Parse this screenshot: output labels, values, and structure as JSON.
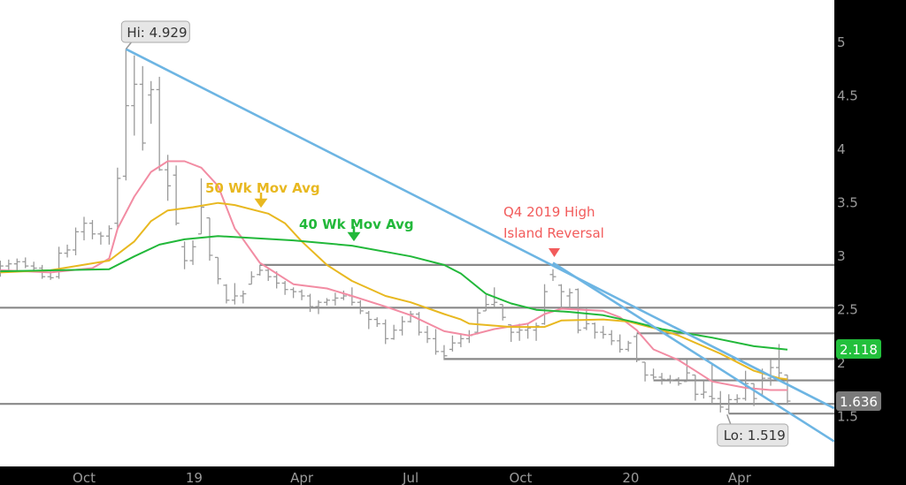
{
  "chart_data": {
    "type": "ohlc",
    "interval": "weekly",
    "title": "",
    "xlabel": "",
    "ylabel": "",
    "xlim": [
      "2018-07-22",
      "2020-06-19"
    ],
    "ylim": [
      1.03,
      5.39
    ],
    "grid": false,
    "x_ticks": [
      {
        "label": "Oct",
        "date": "2018-10-01"
      },
      {
        "label": "19",
        "date": "2019-01-01"
      },
      {
        "label": "Apr",
        "date": "2019-04-01"
      },
      {
        "label": "Jul",
        "date": "2019-07-01"
      },
      {
        "label": "Oct",
        "date": "2019-10-01"
      },
      {
        "label": "20",
        "date": "2020-01-01"
      },
      {
        "label": "Apr",
        "date": "2020-04-01"
      }
    ],
    "y_ticks": [
      {
        "label": "5",
        "value": 5
      },
      {
        "label": "4.5",
        "value": 4.5
      },
      {
        "label": "4",
        "value": 4
      },
      {
        "label": "3.5",
        "value": 3.5
      },
      {
        "label": "3",
        "value": 3
      },
      {
        "label": "2.5",
        "value": 2.5
      },
      {
        "label": "2",
        "value": 2
      },
      {
        "label": "1.5",
        "value": 1.5
      }
    ],
    "bars_columns": [
      "date",
      "open",
      "high",
      "low",
      "close"
    ],
    "bars": [
      [
        "2018-07-23",
        2.86,
        2.95,
        2.8,
        2.9
      ],
      [
        "2018-07-30",
        2.9,
        2.96,
        2.84,
        2.92
      ],
      [
        "2018-08-06",
        2.92,
        2.97,
        2.86,
        2.94
      ],
      [
        "2018-08-13",
        2.94,
        2.98,
        2.88,
        2.9
      ],
      [
        "2018-08-20",
        2.9,
        2.94,
        2.84,
        2.88
      ],
      [
        "2018-08-27",
        2.88,
        2.91,
        2.78,
        2.8
      ],
      [
        "2018-09-03",
        2.8,
        2.86,
        2.77,
        2.79
      ],
      [
        "2018-09-10",
        2.8,
        3.08,
        2.78,
        3.02
      ],
      [
        "2018-09-17",
        3.02,
        3.1,
        2.98,
        3.05
      ],
      [
        "2018-09-24",
        3.05,
        3.26,
        3.0,
        3.22
      ],
      [
        "2018-10-01",
        3.22,
        3.36,
        3.14,
        3.3
      ],
      [
        "2018-10-08",
        3.3,
        3.33,
        3.15,
        3.2
      ],
      [
        "2018-10-15",
        3.2,
        3.22,
        3.1,
        3.18
      ],
      [
        "2018-10-22",
        3.18,
        3.28,
        3.1,
        3.25
      ],
      [
        "2018-10-29",
        3.3,
        3.82,
        3.25,
        3.72
      ],
      [
        "2018-11-05",
        3.74,
        4.929,
        3.7,
        4.4
      ],
      [
        "2018-11-12",
        4.4,
        4.87,
        4.12,
        4.6
      ],
      [
        "2018-11-19",
        4.6,
        4.77,
        3.98,
        4.05
      ],
      [
        "2018-11-26",
        4.5,
        4.63,
        4.23,
        4.55
      ],
      [
        "2018-12-03",
        4.55,
        4.67,
        3.79,
        3.8
      ],
      [
        "2018-12-10",
        3.8,
        3.94,
        3.51,
        3.65
      ],
      [
        "2018-12-17",
        3.75,
        3.84,
        3.28,
        3.3
      ],
      [
        "2018-12-24",
        3.08,
        3.13,
        2.87,
        2.95
      ],
      [
        "2018-12-31",
        2.95,
        3.14,
        2.91,
        3.08
      ],
      [
        "2019-01-07",
        3.2,
        3.72,
        3.2,
        3.45
      ],
      [
        "2019-01-14",
        3.35,
        3.35,
        2.95,
        3.0
      ],
      [
        "2019-01-21",
        2.98,
        2.98,
        2.73,
        2.78
      ],
      [
        "2019-01-28",
        2.72,
        2.73,
        2.55,
        2.58
      ],
      [
        "2019-02-04",
        2.58,
        2.74,
        2.54,
        2.62
      ],
      [
        "2019-02-11",
        2.62,
        2.67,
        2.55,
        2.64
      ],
      [
        "2019-02-18",
        2.73,
        2.85,
        2.73,
        2.8
      ],
      [
        "2019-02-25",
        2.82,
        2.91,
        2.81,
        2.86
      ],
      [
        "2019-03-04",
        2.86,
        2.88,
        2.76,
        2.8
      ],
      [
        "2019-03-11",
        2.8,
        2.85,
        2.69,
        2.74
      ],
      [
        "2019-03-18",
        2.74,
        2.76,
        2.63,
        2.68
      ],
      [
        "2019-03-25",
        2.68,
        2.7,
        2.6,
        2.66
      ],
      [
        "2019-04-01",
        2.66,
        2.68,
        2.58,
        2.62
      ],
      [
        "2019-04-08",
        2.62,
        2.64,
        2.47,
        2.52
      ],
      [
        "2019-04-15",
        2.52,
        2.58,
        2.45,
        2.56
      ],
      [
        "2019-04-22",
        2.56,
        2.6,
        2.53,
        2.58
      ],
      [
        "2019-04-29",
        2.58,
        2.65,
        2.53,
        2.6
      ],
      [
        "2019-05-06",
        2.6,
        2.67,
        2.58,
        2.62
      ],
      [
        "2019-05-13",
        2.62,
        2.7,
        2.53,
        2.56
      ],
      [
        "2019-05-20",
        2.56,
        2.58,
        2.45,
        2.48
      ],
      [
        "2019-05-27",
        2.46,
        2.48,
        2.31,
        2.4
      ],
      [
        "2019-06-03",
        2.4,
        2.42,
        2.33,
        2.36
      ],
      [
        "2019-06-10",
        2.36,
        2.4,
        2.17,
        2.22
      ],
      [
        "2019-06-17",
        2.22,
        2.35,
        2.21,
        2.3
      ],
      [
        "2019-06-24",
        2.3,
        2.43,
        2.25,
        2.38
      ],
      [
        "2019-07-01",
        2.38,
        2.48,
        2.37,
        2.45
      ],
      [
        "2019-07-08",
        2.45,
        2.47,
        2.25,
        2.28
      ],
      [
        "2019-07-15",
        2.28,
        2.34,
        2.18,
        2.22
      ],
      [
        "2019-07-22",
        2.22,
        2.31,
        2.07,
        2.1
      ],
      [
        "2019-07-29",
        2.1,
        2.16,
        2.02,
        2.06
      ],
      [
        "2019-08-05",
        2.12,
        2.25,
        2.1,
        2.18
      ],
      [
        "2019-08-12",
        2.18,
        2.27,
        2.14,
        2.22
      ],
      [
        "2019-08-19",
        2.22,
        2.3,
        2.18,
        2.25
      ],
      [
        "2019-08-26",
        2.28,
        2.5,
        2.26,
        2.46
      ],
      [
        "2019-09-02",
        2.48,
        2.63,
        2.48,
        2.54
      ],
      [
        "2019-09-09",
        2.54,
        2.7,
        2.51,
        2.56
      ],
      [
        "2019-09-16",
        2.54,
        2.54,
        2.39,
        2.42
      ],
      [
        "2019-09-23",
        2.35,
        2.35,
        2.19,
        2.28
      ],
      [
        "2019-09-30",
        2.28,
        2.36,
        2.2,
        2.3
      ],
      [
        "2019-10-07",
        2.3,
        2.36,
        2.22,
        2.32
      ],
      [
        "2019-10-14",
        2.3,
        2.37,
        2.2,
        2.34
      ],
      [
        "2019-10-21",
        2.36,
        2.73,
        2.35,
        2.66
      ],
      [
        "2019-10-28",
        2.82,
        2.87,
        2.76,
        2.8
      ],
      [
        "2019-11-04",
        2.72,
        2.73,
        2.5,
        2.66
      ],
      [
        "2019-11-11",
        2.62,
        2.69,
        2.5,
        2.65
      ],
      [
        "2019-11-18",
        2.68,
        2.69,
        2.27,
        2.3
      ],
      [
        "2019-11-25",
        2.32,
        2.5,
        2.3,
        2.36
      ],
      [
        "2019-12-02",
        2.36,
        2.37,
        2.22,
        2.28
      ],
      [
        "2019-12-09",
        2.28,
        2.34,
        2.22,
        2.26
      ],
      [
        "2019-12-16",
        2.26,
        2.3,
        2.16,
        2.2
      ],
      [
        "2019-12-23",
        2.2,
        2.26,
        2.09,
        2.12
      ],
      [
        "2019-12-30",
        2.12,
        2.2,
        2.1,
        2.18
      ],
      [
        "2020-01-06",
        2.24,
        2.26,
        2.0,
        2.02
      ],
      [
        "2020-01-13",
        2.0,
        2.0,
        1.82,
        1.88
      ],
      [
        "2020-01-20",
        1.88,
        1.94,
        1.84,
        1.86
      ],
      [
        "2020-01-27",
        1.86,
        1.9,
        1.79,
        1.84
      ],
      [
        "2020-02-03",
        1.84,
        1.88,
        1.8,
        1.83
      ],
      [
        "2020-02-10",
        1.84,
        1.86,
        1.78,
        1.8
      ],
      [
        "2020-02-17",
        1.82,
        2.02,
        1.83,
        1.9
      ],
      [
        "2020-02-24",
        1.88,
        1.88,
        1.64,
        1.7
      ],
      [
        "2020-03-02",
        1.7,
        1.83,
        1.66,
        1.72
      ],
      [
        "2020-03-09",
        1.68,
        1.98,
        1.61,
        1.66
      ],
      [
        "2020-03-16",
        1.66,
        1.73,
        1.53,
        1.58
      ],
      [
        "2020-03-23",
        1.56,
        1.7,
        1.519,
        1.65
      ],
      [
        "2020-03-30",
        1.65,
        1.7,
        1.62,
        1.66
      ],
      [
        "2020-04-06",
        1.66,
        1.92,
        1.64,
        1.8
      ],
      [
        "2020-04-13",
        1.8,
        1.8,
        1.59,
        1.66
      ],
      [
        "2020-04-20",
        1.7,
        1.94,
        1.68,
        1.85
      ],
      [
        "2020-04-27",
        1.85,
        2.02,
        1.78,
        1.95
      ],
      [
        "2020-05-04",
        1.95,
        2.17,
        1.82,
        1.9
      ],
      [
        "2020-05-11",
        1.88,
        1.88,
        1.6,
        1.636
      ]
    ],
    "moving_averages": [
      {
        "color": "#f28ca3",
        "points": [
          [
            "2018-07-23",
            2.86
          ],
          [
            "2018-09-03",
            2.84
          ],
          [
            "2018-10-08",
            2.88
          ],
          [
            "2018-10-22",
            2.97
          ],
          [
            "2018-10-29",
            3.25
          ],
          [
            "2018-11-12",
            3.55
          ],
          [
            "2018-11-26",
            3.78
          ],
          [
            "2018-12-10",
            3.88
          ],
          [
            "2018-12-24",
            3.88
          ],
          [
            "2019-01-07",
            3.82
          ],
          [
            "2019-01-21",
            3.65
          ],
          [
            "2019-01-28",
            3.45
          ],
          [
            "2019-02-04",
            3.25
          ],
          [
            "2019-02-11",
            3.15
          ],
          [
            "2019-02-25",
            2.93
          ],
          [
            "2019-03-25",
            2.73
          ],
          [
            "2019-04-22",
            2.69
          ],
          [
            "2019-05-13",
            2.62
          ],
          [
            "2019-06-10",
            2.52
          ],
          [
            "2019-07-01",
            2.44
          ],
          [
            "2019-07-29",
            2.29
          ],
          [
            "2019-08-19",
            2.25
          ],
          [
            "2019-09-09",
            2.31
          ],
          [
            "2019-10-07",
            2.36
          ],
          [
            "2019-10-21",
            2.45
          ],
          [
            "2019-11-04",
            2.5
          ],
          [
            "2019-12-09",
            2.48
          ],
          [
            "2019-12-23",
            2.42
          ],
          [
            "2020-01-06",
            2.3
          ],
          [
            "2020-01-20",
            2.12
          ],
          [
            "2020-02-10",
            2.02
          ],
          [
            "2020-02-24",
            1.92
          ],
          [
            "2020-03-09",
            1.82
          ],
          [
            "2020-04-06",
            1.76
          ],
          [
            "2020-04-27",
            1.74
          ],
          [
            "2020-05-11",
            1.74
          ]
        ]
      },
      {
        "color": "#e8b820",
        "points": [
          [
            "2018-07-23",
            2.84
          ],
          [
            "2018-09-03",
            2.86
          ],
          [
            "2018-10-22",
            2.95
          ],
          [
            "2018-11-12",
            3.13
          ],
          [
            "2018-11-26",
            3.32
          ],
          [
            "2018-12-10",
            3.42
          ],
          [
            "2018-12-31",
            3.45
          ],
          [
            "2019-01-21",
            3.49
          ],
          [
            "2019-02-04",
            3.47
          ],
          [
            "2019-03-04",
            3.39
          ],
          [
            "2019-03-18",
            3.3
          ],
          [
            "2019-04-01",
            3.13
          ],
          [
            "2019-04-22",
            2.91
          ],
          [
            "2019-05-13",
            2.76
          ],
          [
            "2019-06-10",
            2.62
          ],
          [
            "2019-07-01",
            2.56
          ],
          [
            "2019-07-29",
            2.45
          ],
          [
            "2019-08-12",
            2.4
          ],
          [
            "2019-08-19",
            2.36
          ],
          [
            "2019-09-23",
            2.33
          ],
          [
            "2019-10-21",
            2.33
          ],
          [
            "2019-11-04",
            2.39
          ],
          [
            "2019-12-09",
            2.4
          ],
          [
            "2019-12-30",
            2.38
          ],
          [
            "2020-01-27",
            2.3
          ],
          [
            "2020-02-10",
            2.25
          ],
          [
            "2020-03-16",
            2.08
          ],
          [
            "2020-04-13",
            1.92
          ],
          [
            "2020-05-04",
            1.85
          ],
          [
            "2020-05-11",
            1.84
          ]
        ]
      },
      {
        "color": "#22b83a",
        "points": [
          [
            "2018-07-23",
            2.85
          ],
          [
            "2018-10-22",
            2.87
          ],
          [
            "2018-11-12",
            2.99
          ],
          [
            "2018-12-03",
            3.1
          ],
          [
            "2018-12-24",
            3.15
          ],
          [
            "2019-01-21",
            3.18
          ],
          [
            "2019-03-25",
            3.14
          ],
          [
            "2019-05-13",
            3.09
          ],
          [
            "2019-07-01",
            2.99
          ],
          [
            "2019-07-29",
            2.91
          ],
          [
            "2019-08-12",
            2.83
          ],
          [
            "2019-09-02",
            2.64
          ],
          [
            "2019-09-23",
            2.55
          ],
          [
            "2019-10-14",
            2.49
          ],
          [
            "2019-11-11",
            2.47
          ],
          [
            "2019-12-09",
            2.44
          ],
          [
            "2020-01-06",
            2.37
          ],
          [
            "2020-01-27",
            2.31
          ],
          [
            "2020-03-09",
            2.23
          ],
          [
            "2020-04-13",
            2.15
          ],
          [
            "2020-05-11",
            2.118
          ]
        ]
      }
    ],
    "horizontal_levels": [
      {
        "value": 2.91,
        "from": "2019-02-25"
      },
      {
        "value": 2.51,
        "from": "2018-07-22"
      },
      {
        "value": 2.27,
        "from": "2020-01-06"
      },
      {
        "value": 2.03,
        "from": "2019-07-29"
      },
      {
        "value": 1.83,
        "from": "2020-01-20"
      },
      {
        "value": 1.61,
        "from": "2018-07-22"
      },
      {
        "value": 1.519,
        "from": "2020-03-23"
      }
    ],
    "trendlines": [
      {
        "from": [
          "2018-11-05",
          4.929
        ],
        "to": [
          "2020-06-19",
          1.57
        ]
      },
      {
        "from": [
          "2019-10-28",
          2.93
        ],
        "to": [
          "2020-06-19",
          1.26
        ]
      }
    ],
    "colors": {
      "bars": "#9a9a9a",
      "levels": "#888888",
      "trendline": "#6db5e3",
      "ma50_label": "#e8b820",
      "ma40_label": "#22b83a",
      "reversal_note": "#f25b5b",
      "last_ma_badge": "#22c03c",
      "last_price_badge": "#7a7a7a",
      "background": "#ffffff",
      "axis_background": "#000000"
    },
    "annotations": {
      "high_label": "Hi: 4.929",
      "high": {
        "date": "2018-11-05",
        "value": 4.929
      },
      "low_label": "Lo: 1.519",
      "low": {
        "date": "2020-03-23",
        "value": 1.519
      },
      "ma50_label": "50 Wk Mov Avg",
      "ma40_label": "40 Wk Mov Avg",
      "reversal_line1": "Q4 2019 High",
      "reversal_line2": "Island Reversal",
      "reversal_marker": {
        "date": "2019-10-28",
        "icon": "down-triangle"
      }
    },
    "badges": {
      "ma_value": "2.118",
      "last_price": "1.636"
    }
  }
}
